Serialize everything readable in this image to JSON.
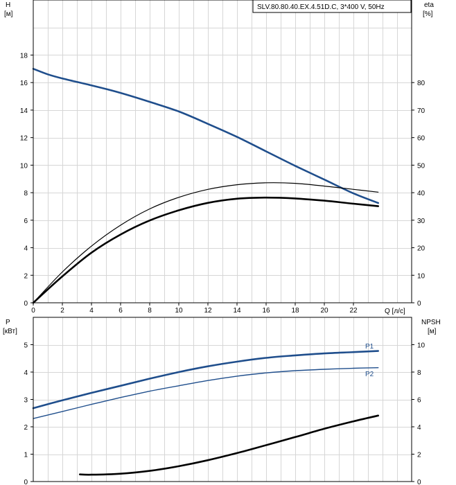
{
  "title": "SLV.80.80.40.EX.4.51D.C, 3*400 V, 50Hz",
  "colors": {
    "blue": "#1f4e8c",
    "black": "#000000",
    "grid": "#d6d6d6"
  },
  "chart_data": [
    {
      "type": "line",
      "panel": "top",
      "xlabel": "Q [л/с]",
      "ylabel_left": [
        "H",
        "[м]"
      ],
      "ylabel_right": [
        "eta",
        "[%]"
      ],
      "xlim": [
        0,
        26
      ],
      "ylim": [
        0,
        22
      ],
      "y2lim": [
        0,
        110
      ],
      "xticks": [
        0,
        2,
        4,
        6,
        8,
        10,
        12,
        14,
        16,
        18,
        20,
        22
      ],
      "yticks": [
        0,
        2,
        4,
        6,
        8,
        10,
        12,
        14,
        16,
        18
      ],
      "y2ticks": [
        0,
        10,
        20,
        30,
        40,
        50,
        60,
        70,
        80
      ],
      "grid": true,
      "series": [
        {
          "axis": "left",
          "color": "#1f4e8c",
          "width": 2.6,
          "x": [
            0,
            1,
            2,
            4,
            6,
            8,
            10,
            12,
            14,
            16,
            18,
            20,
            22,
            23.7
          ],
          "y": [
            17.0,
            16.6,
            16.3,
            15.8,
            15.25,
            14.6,
            13.9,
            13.0,
            12.05,
            11.0,
            9.95,
            8.95,
            7.95,
            7.25
          ]
        },
        {
          "axis": "right",
          "color": "#000000",
          "width": 1.2,
          "x": [
            0,
            2,
            4,
            6,
            8,
            10,
            12,
            14,
            16,
            18,
            20,
            22,
            23.7
          ],
          "y": [
            0,
            11.2,
            20.6,
            28.2,
            34.1,
            38.3,
            41.2,
            42.9,
            43.6,
            43.4,
            42.4,
            41.2,
            40.2
          ]
        },
        {
          "axis": "right",
          "color": "#000000",
          "width": 2.6,
          "x": [
            0,
            2,
            4,
            6,
            8,
            10,
            12,
            14,
            16,
            18,
            20,
            22,
            23.7
          ],
          "y": [
            0,
            9.6,
            18.2,
            24.8,
            29.9,
            33.6,
            36.3,
            37.8,
            38.2,
            37.9,
            37.1,
            36.0,
            35.1
          ]
        }
      ]
    },
    {
      "type": "line",
      "panel": "bottom",
      "ylabel_left": [
        "P",
        "[кВт]"
      ],
      "ylabel_right": [
        "NPSH",
        "[м]"
      ],
      "xlim": [
        0,
        26
      ],
      "ylim": [
        0,
        6
      ],
      "y2lim": [
        0,
        12
      ],
      "yticks": [
        0,
        1,
        2,
        3,
        4,
        5
      ],
      "y2ticks": [
        0,
        2,
        4,
        6,
        8,
        10
      ],
      "grid": true,
      "series": [
        {
          "name": "P1",
          "axis": "left",
          "color": "#1f4e8c",
          "width": 2.6,
          "x": [
            0,
            2,
            4,
            6,
            8,
            10,
            12,
            14,
            16,
            18,
            20,
            22,
            23.7
          ],
          "y": [
            2.68,
            2.97,
            3.24,
            3.5,
            3.76,
            4.0,
            4.21,
            4.38,
            4.52,
            4.61,
            4.68,
            4.73,
            4.77
          ]
        },
        {
          "name": "P2",
          "axis": "left",
          "color": "#1f4e8c",
          "width": 1.4,
          "x": [
            0,
            2,
            4,
            6,
            8,
            10,
            12,
            14,
            16,
            18,
            20,
            22,
            23.7
          ],
          "y": [
            2.3,
            2.56,
            2.82,
            3.07,
            3.3,
            3.5,
            3.69,
            3.85,
            3.97,
            4.05,
            4.1,
            4.14,
            4.16
          ]
        },
        {
          "axis": "right",
          "color": "#000000",
          "width": 2.6,
          "x": [
            3.2,
            4,
            6,
            8,
            10,
            12,
            14,
            16,
            18,
            20,
            22,
            23.7
          ],
          "y": [
            0.52,
            0.5,
            0.57,
            0.78,
            1.12,
            1.56,
            2.08,
            2.66,
            3.25,
            3.86,
            4.4,
            4.82
          ]
        }
      ]
    }
  ]
}
